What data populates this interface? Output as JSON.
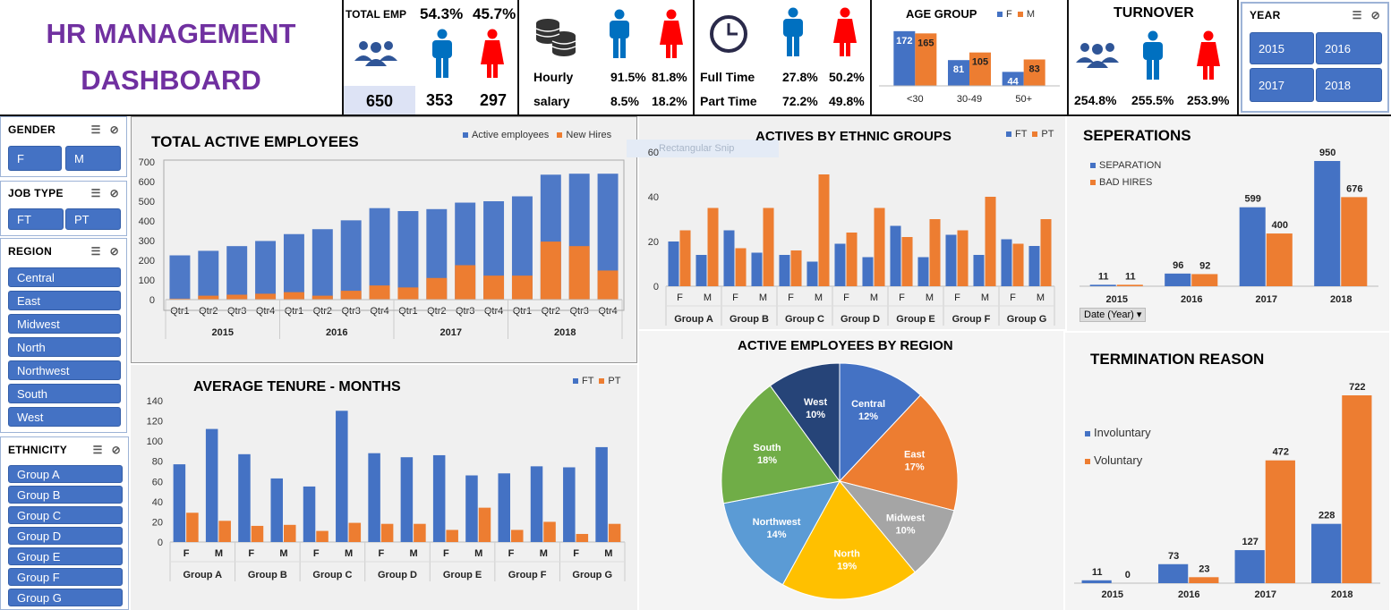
{
  "header": {
    "title_line1": "HR MANAGEMENT",
    "title_line2": "DASHBOARD",
    "total_emp": {
      "label": "TOTAL EMP",
      "male_pct": "54.3%",
      "female_pct": "45.7%",
      "total": "650",
      "male": "353",
      "female": "297"
    },
    "pay": {
      "row1_label": "Hourly",
      "row1_m": "91.5%",
      "row1_f": "81.8%",
      "row2_label": "salary",
      "row2_m": "8.5%",
      "row2_f": "18.2%"
    },
    "time": {
      "row1_label": "Full Time",
      "row1_m": "27.8%",
      "row1_f": "50.2%",
      "row2_label": "Part Time",
      "row2_m": "72.2%",
      "row2_f": "49.8%"
    },
    "turnover": {
      "label": "TURNOVER",
      "total": "254.8%",
      "male": "255.5%",
      "female": "253.9%"
    },
    "year_slicer": {
      "label": "YEAR",
      "items": [
        "2015",
        "2016",
        "2017",
        "2018"
      ]
    }
  },
  "icons": {
    "people": "people-group-icon",
    "male": "male-person-icon",
    "female": "female-person-icon",
    "coins": "coins-icon",
    "clock": "clock-icon",
    "multi_select": "multi-select-icon",
    "clear_filter": "clear-filter-icon"
  },
  "colors": {
    "blue": "#4472c4",
    "orange": "#ed7d31",
    "purple": "#7030a0",
    "male": "#0070c0",
    "female": "#ff0000"
  },
  "slicers": {
    "gender": {
      "label": "GENDER",
      "items": [
        "F",
        "M"
      ]
    },
    "job_type": {
      "label": "JOB TYPE",
      "items": [
        "FT",
        "PT"
      ]
    },
    "region": {
      "label": "REGION",
      "items": [
        "Central",
        "East",
        "Midwest",
        "North",
        "Northwest",
        "South",
        "West"
      ]
    },
    "ethnicity": {
      "label": "ETHNICITY",
      "items": [
        "Group A",
        "Group B",
        "Group C",
        "Group D",
        "Group E",
        "Group F",
        "Group G"
      ]
    }
  },
  "date_filter": {
    "label": "Date (Year)"
  },
  "ghost_text": "Rectangular Snip",
  "chart_data": [
    {
      "id": "age_group",
      "type": "bar",
      "title": "AGE GROUP",
      "categories": [
        "<30",
        "30-49",
        "50+"
      ],
      "series": [
        {
          "name": "F",
          "values": [
            172,
            81,
            44
          ]
        },
        {
          "name": "M",
          "values": [
            165,
            105,
            83
          ]
        }
      ],
      "ylim": [
        0,
        180
      ]
    },
    {
      "id": "total_active",
      "type": "bar",
      "title": "TOTAL ACTIVE EMPLOYEES",
      "categories": [
        "Qtr1",
        "Qtr2",
        "Qtr3",
        "Qtr4",
        "Qtr1",
        "Qtr2",
        "Qtr3",
        "Qtr4",
        "Qtr1",
        "Qtr2",
        "Qtr3",
        "Qtr4",
        "Qtr1",
        "Qtr2",
        "Qtr3",
        "Qtr4"
      ],
      "groups": [
        "2015",
        "2016",
        "2017",
        "2018"
      ],
      "series": [
        {
          "name": "Active employees",
          "values": [
            225,
            248,
            272,
            298,
            333,
            358,
            403,
            465,
            450,
            460,
            493,
            500,
            525,
            635,
            640,
            640
          ]
        },
        {
          "name": "New Hires",
          "values": [
            5,
            20,
            25,
            30,
            38,
            20,
            45,
            72,
            62,
            110,
            175,
            122,
            122,
            295,
            272,
            148
          ]
        }
      ],
      "ylim": [
        0,
        700
      ],
      "yticks": [
        "0",
        "100",
        "200",
        "300",
        "400",
        "500",
        "600",
        "700"
      ]
    },
    {
      "id": "ethnic_actives",
      "type": "bar",
      "title": "ACTIVES BY ETHNIC GROUPS",
      "categories": [
        "F",
        "M",
        "F",
        "M",
        "F",
        "M",
        "F",
        "M",
        "F",
        "M",
        "F",
        "M",
        "F",
        "M"
      ],
      "groups": [
        "Group A",
        "Group B",
        "Group C",
        "Group D",
        "Group E",
        "Group F",
        "Group G"
      ],
      "series": [
        {
          "name": "FT",
          "values": [
            20,
            14,
            25,
            15,
            14,
            11,
            19,
            13,
            27,
            13,
            23,
            14,
            21,
            18
          ]
        },
        {
          "name": "PT",
          "values": [
            25,
            35,
            17,
            35,
            16,
            50,
            24,
            35,
            22,
            30,
            25,
            40,
            19,
            30
          ]
        }
      ],
      "ylim": [
        0,
        60
      ],
      "yticks": [
        "0",
        "20",
        "40",
        "60"
      ]
    },
    {
      "id": "separations",
      "type": "bar",
      "title": "SEPERATIONS",
      "categories": [
        "2015",
        "2016",
        "2017",
        "2018"
      ],
      "series": [
        {
          "name": "SEPARATION",
          "values": [
            11,
            96,
            599,
            950
          ]
        },
        {
          "name": "BAD HIRES",
          "values": [
            11,
            92,
            400,
            676
          ]
        }
      ],
      "ylim": [
        0,
        950
      ]
    },
    {
      "id": "tenure",
      "type": "bar",
      "title": "AVERAGE TENURE - MONTHS",
      "categories": [
        "F",
        "M",
        "F",
        "M",
        "F",
        "M",
        "F",
        "M",
        "F",
        "M",
        "F",
        "M",
        "F",
        "M"
      ],
      "groups": [
        "Group A",
        "Group B",
        "Group C",
        "Group D",
        "Group E",
        "Group F",
        "Group G"
      ],
      "series": [
        {
          "name": "FT",
          "values": [
            77,
            112,
            87,
            63,
            55,
            130,
            88,
            84,
            86,
            66,
            68,
            75,
            74,
            94
          ]
        },
        {
          "name": "PT",
          "values": [
            29,
            21,
            16,
            17,
            11,
            19,
            18,
            18,
            12,
            34,
            12,
            20,
            8,
            18
          ]
        }
      ],
      "ylim": [
        0,
        140
      ],
      "yticks": [
        "0",
        "20",
        "40",
        "60",
        "80",
        "100",
        "120",
        "140"
      ]
    },
    {
      "id": "region_pie",
      "type": "pie",
      "title": "ACTIVE EMPLOYEES BY REGION",
      "labels": [
        "Central",
        "East",
        "Midwest",
        "North",
        "Northwest",
        "South",
        "West"
      ],
      "values": [
        12,
        17,
        10,
        19,
        14,
        18,
        10
      ],
      "display": [
        "12%",
        "17%",
        "10%",
        "19%",
        "14%",
        "18%",
        "10%"
      ],
      "colors": [
        "#4472c4",
        "#ed7d31",
        "#a5a5a5",
        "#ffc000",
        "#5b9bd5",
        "#70ad47",
        "#264478"
      ]
    },
    {
      "id": "termination",
      "type": "bar",
      "title": "TERMINATION REASON",
      "categories": [
        "2015",
        "2016",
        "2017",
        "2018"
      ],
      "series": [
        {
          "name": "Involuntary",
          "values": [
            11,
            73,
            127,
            228
          ]
        },
        {
          "name": "Voluntary",
          "values": [
            0,
            23,
            472,
            722
          ]
        }
      ],
      "ylim": [
        0,
        722
      ]
    }
  ]
}
